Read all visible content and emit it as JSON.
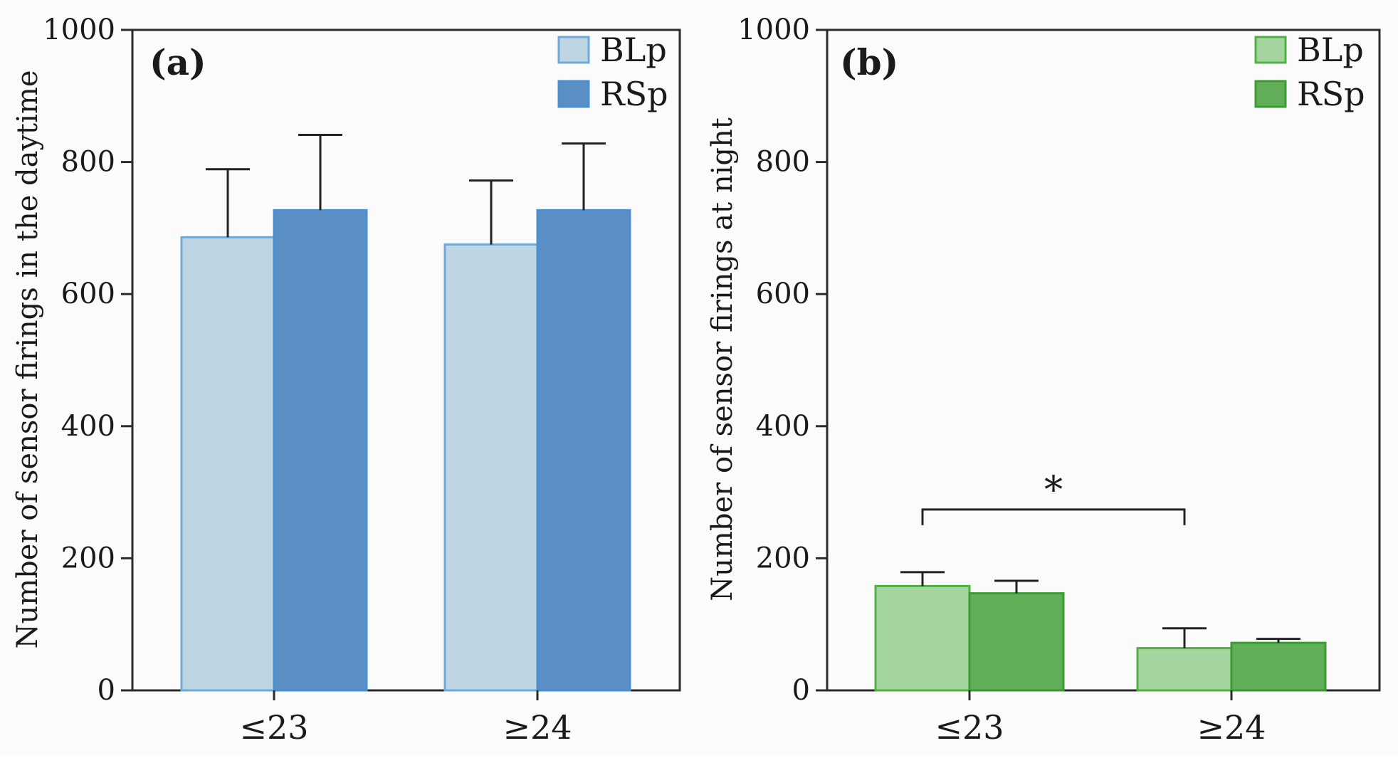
{
  "chart_data": [
    {
      "type": "bar",
      "panel_label": "(a)",
      "title": "",
      "xlabel": "",
      "ylabel": "Number of sensor firings in the daytime",
      "categories": [
        "≤23",
        "≥24"
      ],
      "series": [
        {
          "name": "BLp",
          "values": [
            686,
            675
          ],
          "errors": [
            103,
            97
          ],
          "color": "#bed6e4",
          "stroke": "#6faad6"
        },
        {
          "name": "RSp",
          "values": [
            727,
            727
          ],
          "errors": [
            114,
            101
          ],
          "color": "#5b8ec5",
          "stroke": "#4a90d0"
        }
      ],
      "ylim": [
        0,
        1000
      ],
      "yticks": [
        "0",
        "200",
        "400",
        "600",
        "800",
        "1000"
      ],
      "grid": false,
      "legend_position": "top-right"
    },
    {
      "type": "bar",
      "panel_label": "(b)",
      "title": "",
      "xlabel": "",
      "ylabel": "Number of sensor firings at night",
      "categories": [
        "≤23",
        "≥24"
      ],
      "series": [
        {
          "name": "BLp",
          "values": [
            158,
            64
          ],
          "errors": [
            21,
            30
          ],
          "color": "#a5d59e",
          "stroke": "#4fb046"
        },
        {
          "name": "RSp",
          "values": [
            147,
            72
          ],
          "errors": [
            19,
            6
          ],
          "color": "#61af59",
          "stroke": "#3d9b36"
        }
      ],
      "ylim": [
        0,
        1000
      ],
      "yticks": [
        "0",
        "200",
        "400",
        "600",
        "800",
        "1000"
      ],
      "grid": false,
      "legend_position": "top-right",
      "annotations": [
        {
          "type": "significance-bracket",
          "from_category": "≤23",
          "to_category": "≥24",
          "label": "*"
        }
      ]
    }
  ]
}
